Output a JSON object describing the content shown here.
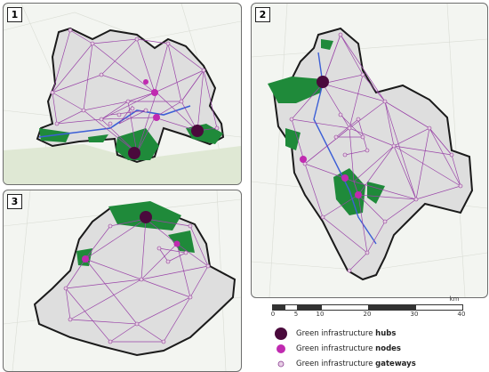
{
  "panels": [
    {
      "label": "1"
    },
    {
      "label": "2"
    },
    {
      "label": "3"
    }
  ],
  "scale": {
    "unit": "km",
    "ticks": [
      "0",
      "5",
      "10",
      "20",
      "30",
      "40"
    ]
  },
  "legend": {
    "hubs": {
      "prefix": "Green infrastructure ",
      "bold": "hubs",
      "color": "#4a0a3c"
    },
    "nodes": {
      "prefix": "Green infrastructure ",
      "bold": "nodes",
      "color": "#c02ab0"
    },
    "gateways": {
      "prefix": "Green infrastructure ",
      "bold": "gateways",
      "color": "#d8b8d8"
    }
  },
  "colors": {
    "region_fill": "#dedede",
    "boundary": "#1a1a1a",
    "network": "#9a45a8",
    "green_area": "#1f8a3a",
    "water": "#3c5fd6",
    "map_bg": "#f3f5f1"
  }
}
